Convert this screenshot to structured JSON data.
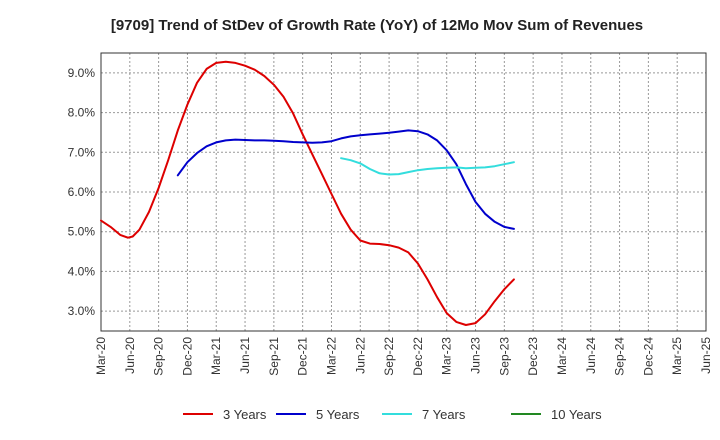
{
  "chart_data": {
    "type": "line",
    "title": "[9709]  Trend of StDev of Growth Rate (YoY) of 12Mo Mov Sum of Revenues",
    "xlabel": "",
    "ylabel": "",
    "x_ticks": [
      "Mar-20",
      "Jun-20",
      "Sep-20",
      "Dec-20",
      "Mar-21",
      "Jun-21",
      "Sep-21",
      "Dec-21",
      "Mar-22",
      "Jun-22",
      "Sep-22",
      "Dec-22",
      "Mar-23",
      "Jun-23",
      "Sep-23",
      "Dec-23",
      "Mar-24",
      "Jun-24",
      "Sep-24",
      "Dec-24",
      "Mar-25",
      "Jun-25"
    ],
    "y_ticks": [
      "3.0%",
      "4.0%",
      "5.0%",
      "6.0%",
      "7.0%",
      "8.0%",
      "9.0%"
    ],
    "y_tick_values": [
      3.0,
      4.0,
      5.0,
      6.0,
      7.0,
      8.0,
      9.0
    ],
    "ylim": [
      2.5,
      9.5
    ],
    "grid": true,
    "legend_position": "bottom",
    "series": [
      {
        "name": "3 Years",
        "color": "#dd0000",
        "points": [
          [
            0,
            5.28
          ],
          [
            1,
            5.12
          ],
          [
            2,
            4.92
          ],
          [
            2.8,
            4.85
          ],
          [
            3.3,
            4.88
          ],
          [
            4,
            5.05
          ],
          [
            5,
            5.5
          ],
          [
            6,
            6.1
          ],
          [
            7,
            6.8
          ],
          [
            8,
            7.55
          ],
          [
            9,
            8.2
          ],
          [
            10,
            8.75
          ],
          [
            11,
            9.1
          ],
          [
            12,
            9.25
          ],
          [
            13,
            9.28
          ],
          [
            14,
            9.25
          ],
          [
            15,
            9.18
          ],
          [
            16,
            9.08
          ],
          [
            17,
            8.92
          ],
          [
            18,
            8.7
          ],
          [
            19,
            8.4
          ],
          [
            20,
            7.98
          ],
          [
            21,
            7.45
          ],
          [
            22,
            6.95
          ],
          [
            23,
            6.45
          ],
          [
            24,
            5.95
          ],
          [
            25,
            5.45
          ],
          [
            26,
            5.05
          ],
          [
            27,
            4.78
          ],
          [
            28,
            4.7
          ],
          [
            29,
            4.69
          ],
          [
            30,
            4.66
          ],
          [
            31,
            4.6
          ],
          [
            32,
            4.48
          ],
          [
            33,
            4.2
          ],
          [
            34,
            3.8
          ],
          [
            35,
            3.35
          ],
          [
            36,
            2.95
          ],
          [
            37,
            2.73
          ],
          [
            38,
            2.65
          ],
          [
            39,
            2.7
          ],
          [
            40,
            2.92
          ],
          [
            41,
            3.25
          ],
          [
            42,
            3.55
          ],
          [
            43,
            3.8
          ]
        ]
      },
      {
        "name": "5 Years",
        "color": "#0000cc",
        "points": [
          [
            8,
            6.42
          ],
          [
            9,
            6.75
          ],
          [
            10,
            6.98
          ],
          [
            11,
            7.15
          ],
          [
            12,
            7.25
          ],
          [
            13,
            7.3
          ],
          [
            14,
            7.32
          ],
          [
            15,
            7.31
          ],
          [
            16,
            7.3
          ],
          [
            17,
            7.3
          ],
          [
            18,
            7.29
          ],
          [
            19,
            7.28
          ],
          [
            20,
            7.26
          ],
          [
            21,
            7.25
          ],
          [
            22,
            7.24
          ],
          [
            23,
            7.25
          ],
          [
            24,
            7.28
          ],
          [
            25,
            7.35
          ],
          [
            26,
            7.4
          ],
          [
            27,
            7.43
          ],
          [
            28,
            7.45
          ],
          [
            29,
            7.47
          ],
          [
            30,
            7.49
          ],
          [
            31,
            7.52
          ],
          [
            32,
            7.55
          ],
          [
            33,
            7.53
          ],
          [
            34,
            7.45
          ],
          [
            35,
            7.3
          ],
          [
            36,
            7.05
          ],
          [
            37,
            6.7
          ],
          [
            38,
            6.2
          ],
          [
            39,
            5.75
          ],
          [
            40,
            5.45
          ],
          [
            41,
            5.25
          ],
          [
            42,
            5.12
          ],
          [
            43,
            5.07
          ]
        ]
      },
      {
        "name": "7 Years",
        "color": "#33dddd",
        "points": [
          [
            25,
            6.85
          ],
          [
            26,
            6.8
          ],
          [
            27,
            6.72
          ],
          [
            28,
            6.58
          ],
          [
            29,
            6.47
          ],
          [
            30,
            6.44
          ],
          [
            31,
            6.45
          ],
          [
            32,
            6.5
          ],
          [
            33,
            6.55
          ],
          [
            34,
            6.58
          ],
          [
            35,
            6.6
          ],
          [
            36,
            6.61
          ],
          [
            37,
            6.62
          ],
          [
            38,
            6.6
          ],
          [
            39,
            6.61
          ],
          [
            40,
            6.62
          ],
          [
            41,
            6.65
          ],
          [
            42,
            6.7
          ],
          [
            43,
            6.75
          ]
        ]
      },
      {
        "name": "10 Years",
        "color": "#228822",
        "points": []
      }
    ]
  }
}
